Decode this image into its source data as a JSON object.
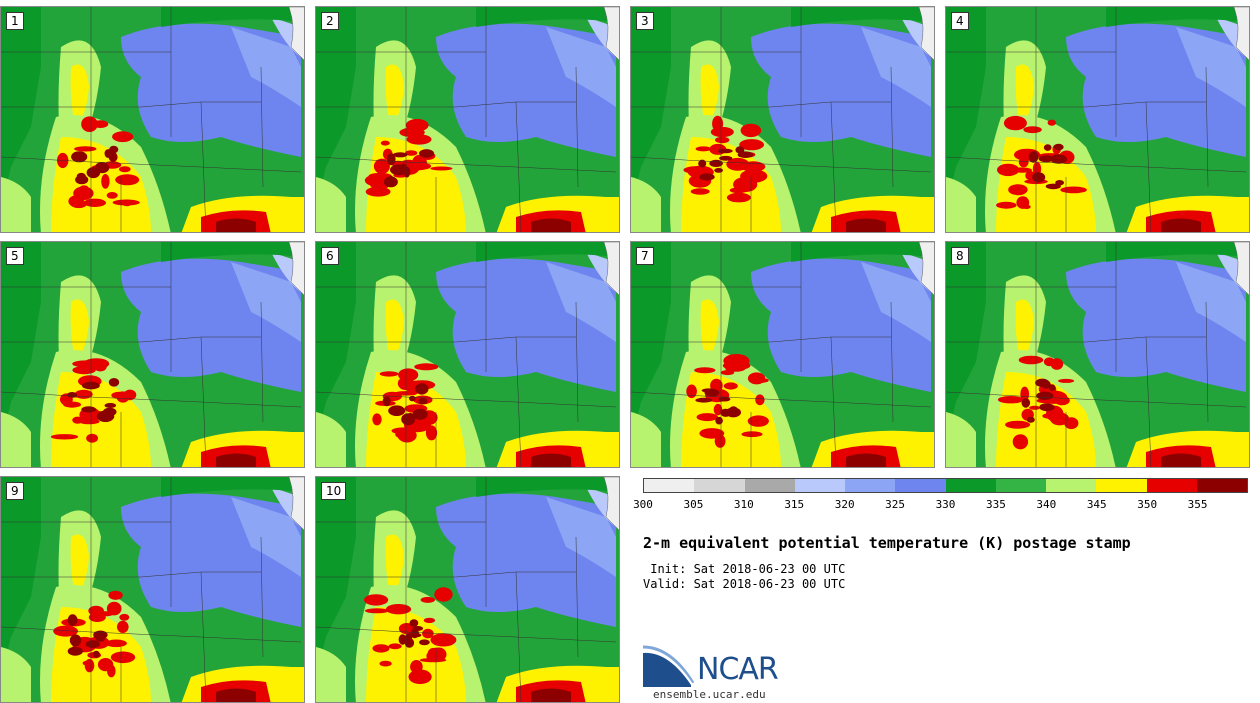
{
  "panels": [
    {
      "label": "1"
    },
    {
      "label": "2"
    },
    {
      "label": "3"
    },
    {
      "label": "4"
    },
    {
      "label": "5"
    },
    {
      "label": "6"
    },
    {
      "label": "7"
    },
    {
      "label": "8"
    },
    {
      "label": "9"
    },
    {
      "label": "10"
    }
  ],
  "colorbar": {
    "colors": [
      "#efefef",
      "#d6d6d6",
      "#a9a9a9",
      "#b9c9fb",
      "#8ca5f5",
      "#6e85ef",
      "#0b9a2a",
      "#34b444",
      "#b7f36e",
      "#fff200",
      "#e60000",
      "#8c0000"
    ],
    "ticks": [
      "300",
      "305",
      "310",
      "315",
      "320",
      "325",
      "330",
      "335",
      "340",
      "345",
      "350",
      "355"
    ]
  },
  "title": "2-m equivalent potential temperature (K) postage stamp",
  "init": " Init: Sat 2018-06-23 00 UTC",
  "valid": "Valid: Sat 2018-06-23 00 UTC",
  "logo": {
    "text": "NCAR",
    "url": "ensemble.ucar.edu"
  }
}
